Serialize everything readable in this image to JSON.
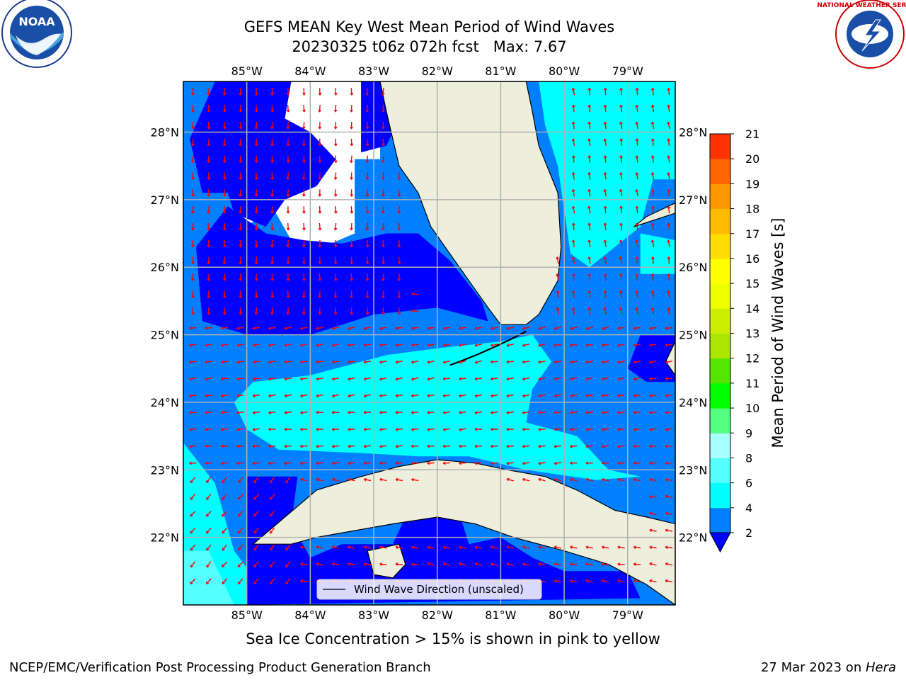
{
  "header": {
    "title_line1": "GEFS MEAN Key West Mean Period of Wind Waves",
    "title_line2": "20230325 t06z 072h fcst   Max: 7.67"
  },
  "logos": {
    "left": {
      "name": "noaa-logo",
      "text": "NOAA"
    },
    "right": {
      "name": "nws-logo",
      "text": "NATIONAL WEATHER SERVICE"
    }
  },
  "map": {
    "lon_labels": [
      "85°W",
      "84°W",
      "83°W",
      "82°W",
      "81°W",
      "80°W",
      "79°W"
    ],
    "lat_labels": [
      "28°N",
      "27°N",
      "26°N",
      "25°N",
      "24°N",
      "23°N",
      "22°N"
    ],
    "lon_values": [
      -85,
      -84,
      -83,
      -82,
      -81,
      -80,
      -79
    ],
    "lat_values": [
      28,
      27,
      26,
      25,
      24,
      23,
      22
    ],
    "extent": {
      "lon_min": -86.0,
      "lon_max": -78.25,
      "lat_min": 21.0,
      "lat_max": 28.75
    },
    "legend_text": "Wind Wave Direction (unscaled)",
    "colors": {
      "land": "#eeeedd",
      "arrow": "#ff0000",
      "band_below_2": "#0000ff",
      "band_2_4": "#0080ff",
      "band_4_6": "#00ffff"
    }
  },
  "colorbar": {
    "label": "Mean Period of Wind Waves [s]",
    "tick_labels": [
      "2",
      "4",
      "6",
      "8",
      "9",
      "10",
      "11",
      "12",
      "13",
      "14",
      "15",
      "16",
      "17",
      "18",
      "19",
      "20",
      "21"
    ],
    "levels": [
      2,
      4,
      6,
      8,
      9,
      10,
      11,
      12,
      13,
      14,
      15,
      16,
      17,
      18,
      19,
      20,
      21
    ],
    "colors": [
      "#0080ff",
      "#00ffff",
      "#55ffff",
      "#aaffff",
      "#55ff80",
      "#00ff00",
      "#55e600",
      "#aae600",
      "#ccee00",
      "#eeff00",
      "#ffff00",
      "#ffdd00",
      "#ffbb00",
      "#ff9900",
      "#ff6600",
      "#ff3300"
    ],
    "under_color": "#0000ff"
  },
  "footer": {
    "note": "Sea Ice Concentration > 15% is shown in pink to yellow",
    "credit_left": "NCEP/EMC/Verification Post Processing Product Generation Branch",
    "credit_date": "27 Mar 2023 on ",
    "credit_machine": "Hera"
  }
}
